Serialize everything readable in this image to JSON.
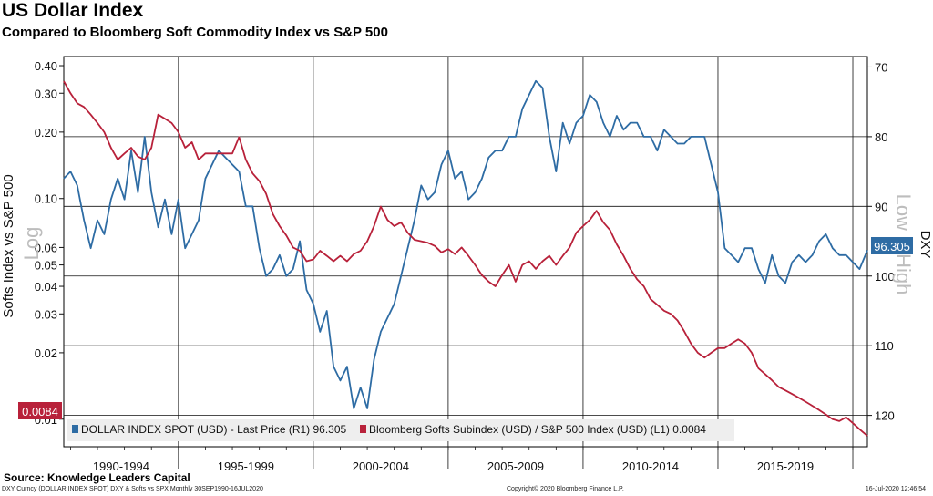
{
  "header": {
    "title": "US Dollar Index",
    "subtitle": "Compared to Bloomberg Soft Commodity Index vs S&P 500"
  },
  "footer": {
    "source": "Source: Knowledge Leaders Capital",
    "ticker_line": "DXY Curncy (DOLLAR INDEX SPOT) DXY & Softs vs SPX  Monthly 30SEP1990-16JUL2020",
    "copyright": "Copyright© 2020 Bloomberg Finance L.P.",
    "timestamp": "16-Jul-2020 12:46:54"
  },
  "chart_data": {
    "type": "line",
    "title": "US Dollar Index",
    "subtitle": "Compared to Bloomberg Soft Commodity Index vs S&P 500",
    "x_range": [
      1990.75,
      2020.54
    ],
    "x_period_labels": [
      "1990-1994",
      "1995-1999",
      "2000-2004",
      "2005-2009",
      "2010-2014",
      "2015-2019"
    ],
    "left_axis": {
      "label": "Softs Index vs S&P 500",
      "scale_note": "Log",
      "scale": "log",
      "range": [
        0.0075,
        0.44
      ],
      "ticks": [
        0.4,
        0.3,
        0.2,
        0.1,
        0.06,
        0.05,
        0.04,
        0.03,
        0.02,
        0.01
      ],
      "tick_labels": [
        "0.40",
        "0.30",
        "0.20",
        "0.10",
        "0.06",
        "0.05",
        "0.04",
        "0.03",
        "0.02",
        "0.01"
      ]
    },
    "right_axis": {
      "label": "DXY",
      "scale_note": "Low = High",
      "inverted": true,
      "range": [
        68.5,
        124.5
      ],
      "ticks": [
        70,
        80,
        90,
        100,
        110,
        120
      ]
    },
    "legend": {
      "position": "bottom",
      "items": [
        {
          "name": "DOLLAR INDEX SPOT (USD) - Last Price (R1) 96.305",
          "color": "#2e6ca4"
        },
        {
          "name": "Bloomberg Softs Subindex (USD) / S&P 500 Index (USD) (L1) 0.0084",
          "color": "#b8213a"
        }
      ]
    },
    "last_value_tags": {
      "dxy": "96.305",
      "softs": "0.0084"
    },
    "series": [
      {
        "name": "DOLLAR INDEX SPOT (USD) - Last Price (R1) 96.305",
        "axis": "right",
        "color": "#2e6ca4",
        "x": [
          1990.75,
          1991.0,
          1991.25,
          1991.5,
          1991.75,
          1992.0,
          1992.25,
          1992.5,
          1992.75,
          1993.0,
          1993.25,
          1993.5,
          1993.75,
          1994.0,
          1994.25,
          1994.5,
          1994.75,
          1995.0,
          1995.25,
          1995.5,
          1995.75,
          1996.0,
          1996.5,
          1997.0,
          1997.25,
          1997.5,
          1997.75,
          1998.0,
          1998.25,
          1998.5,
          1998.75,
          1999.0,
          1999.25,
          1999.5,
          1999.75,
          2000.0,
          2000.25,
          2000.5,
          2000.75,
          2001.0,
          2001.25,
          2001.5,
          2001.75,
          2002.0,
          2002.25,
          2002.5,
          2002.75,
          2003.0,
          2003.25,
          2003.5,
          2003.75,
          2004.0,
          2004.25,
          2004.5,
          2004.75,
          2005.0,
          2005.25,
          2005.5,
          2005.75,
          2006.0,
          2006.25,
          2006.5,
          2006.75,
          2007.0,
          2007.25,
          2007.5,
          2007.75,
          2008.0,
          2008.25,
          2008.5,
          2008.75,
          2009.0,
          2009.25,
          2009.5,
          2009.75,
          2010.0,
          2010.25,
          2010.5,
          2010.75,
          2011.0,
          2011.25,
          2011.5,
          2011.75,
          2012.0,
          2012.25,
          2012.5,
          2012.75,
          2013.0,
          2013.25,
          2013.5,
          2013.75,
          2014.0,
          2014.25,
          2014.5,
          2014.75,
          2015.0,
          2015.25,
          2015.5,
          2015.75,
          2016.0,
          2016.25,
          2016.5,
          2016.75,
          2017.0,
          2017.25,
          2017.5,
          2017.75,
          2018.0,
          2018.25,
          2018.5,
          2018.75,
          2019.0,
          2019.25,
          2019.5,
          2019.75,
          2020.0,
          2020.25,
          2020.54
        ],
        "y": [
          86,
          85,
          87,
          92,
          96,
          92,
          94,
          89,
          86,
          89,
          82,
          88,
          80,
          88,
          93,
          89,
          94,
          89,
          96,
          94,
          92,
          86,
          82,
          84,
          85,
          90,
          90,
          96,
          100,
          99,
          97,
          100,
          99,
          95,
          102,
          104,
          108,
          105,
          113,
          115,
          113,
          119,
          116,
          119,
          112,
          108,
          106,
          104,
          100,
          96,
          92,
          87,
          89,
          88,
          84,
          82,
          86,
          85,
          89,
          88,
          86,
          83,
          82,
          82,
          80,
          80,
          76,
          74,
          72,
          73,
          80,
          85,
          78,
          81,
          78,
          77,
          74,
          75,
          78,
          80,
          77,
          79,
          78,
          78,
          80,
          80,
          82,
          79,
          80,
          81,
          81,
          80,
          80,
          80,
          84,
          88,
          96,
          97,
          98,
          96,
          96,
          99,
          101,
          97,
          100,
          101,
          98,
          97,
          98,
          97,
          95,
          94,
          96,
          97,
          97,
          98,
          99,
          96.3
        ]
      },
      {
        "name": "Bloomberg Softs Subindex (USD) / S&P 500 Index (USD) (L1) 0.0084",
        "axis": "left",
        "color": "#b8213a",
        "x": [
          1990.75,
          1991.0,
          1991.25,
          1991.5,
          1991.75,
          1992.0,
          1992.25,
          1992.5,
          1992.75,
          1993.0,
          1993.25,
          1993.5,
          1993.75,
          1994.0,
          1994.25,
          1994.5,
          1994.75,
          1995.0,
          1995.25,
          1995.5,
          1995.75,
          1996.0,
          1996.5,
          1997.0,
          1997.25,
          1997.5,
          1997.75,
          1998.0,
          1998.25,
          1998.5,
          1998.75,
          1999.0,
          1999.25,
          1999.5,
          1999.75,
          2000.0,
          2000.25,
          2000.5,
          2000.75,
          2001.0,
          2001.25,
          2001.5,
          2001.75,
          2002.0,
          2002.25,
          2002.5,
          2002.75,
          2003.0,
          2003.25,
          2003.5,
          2003.75,
          2004.0,
          2004.25,
          2004.5,
          2004.75,
          2005.0,
          2005.25,
          2005.5,
          2005.75,
          2006.0,
          2006.25,
          2006.5,
          2006.75,
          2007.0,
          2007.25,
          2007.5,
          2007.75,
          2008.0,
          2008.25,
          2008.5,
          2008.75,
          2009.0,
          2009.25,
          2009.5,
          2009.75,
          2010.0,
          2010.25,
          2010.5,
          2010.75,
          2011.0,
          2011.25,
          2011.5,
          2011.75,
          2012.0,
          2012.25,
          2012.5,
          2012.75,
          2013.0,
          2013.25,
          2013.5,
          2013.75,
          2014.0,
          2014.25,
          2014.5,
          2014.75,
          2015.0,
          2015.25,
          2015.5,
          2015.75,
          2016.0,
          2016.25,
          2016.5,
          2016.75,
          2017.0,
          2017.25,
          2017.5,
          2017.75,
          2018.0,
          2018.25,
          2018.5,
          2018.75,
          2019.0,
          2019.25,
          2019.5,
          2019.75,
          2020.0,
          2020.25,
          2020.54
        ],
        "y": [
          0.34,
          0.3,
          0.27,
          0.26,
          0.24,
          0.22,
          0.2,
          0.17,
          0.15,
          0.16,
          0.17,
          0.155,
          0.15,
          0.17,
          0.24,
          0.23,
          0.22,
          0.2,
          0.17,
          0.18,
          0.15,
          0.16,
          0.16,
          0.16,
          0.19,
          0.15,
          0.13,
          0.12,
          0.105,
          0.085,
          0.075,
          0.068,
          0.06,
          0.058,
          0.052,
          0.053,
          0.058,
          0.055,
          0.052,
          0.055,
          0.052,
          0.056,
          0.058,
          0.064,
          0.075,
          0.092,
          0.08,
          0.075,
          0.078,
          0.07,
          0.065,
          0.064,
          0.063,
          0.061,
          0.057,
          0.059,
          0.056,
          0.06,
          0.055,
          0.05,
          0.045,
          0.042,
          0.04,
          0.045,
          0.05,
          0.042,
          0.05,
          0.052,
          0.048,
          0.052,
          0.055,
          0.05,
          0.055,
          0.06,
          0.07,
          0.075,
          0.08,
          0.088,
          0.078,
          0.072,
          0.062,
          0.055,
          0.048,
          0.043,
          0.04,
          0.035,
          0.033,
          0.031,
          0.03,
          0.028,
          0.025,
          0.022,
          0.02,
          0.019,
          0.02,
          0.021,
          0.021,
          0.022,
          0.023,
          0.022,
          0.02,
          0.017,
          0.016,
          0.015,
          0.014,
          0.0135,
          0.013,
          0.0125,
          0.012,
          0.0115,
          0.011,
          0.0105,
          0.01,
          0.0098,
          0.0102,
          0.0096,
          0.009,
          0.0084
        ]
      }
    ]
  }
}
